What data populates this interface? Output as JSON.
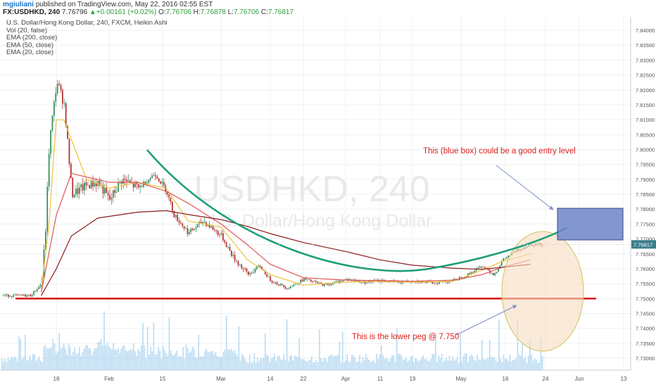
{
  "header": {
    "author": "mgiuliani",
    "published": "published on TradingView.com, May 22, 2016 02:55 EST",
    "symbol": "FX:USDHKD, 240",
    "last": "7.76796",
    "arrow": "▲",
    "change": "+0.00161 (+0.02%)",
    "o_label": "O:",
    "o_val": "7.76706",
    "h_label": "H:",
    "h_val": "7.76878",
    "l_label": "L:",
    "l_val": "7.76706",
    "c_label": "C:",
    "c_val": "7.76817"
  },
  "legend": {
    "title": "U.S. Dollar/Hong Kong Dollar, 240, FXCM, Heikin Ashi",
    "vol": "Vol (20, false)",
    "ema200": "EMA (200, close)",
    "ema50": "EMA (50, close)",
    "ema20": "EMA (20, close)"
  },
  "watermark": {
    "big": "USDHKD, 240",
    "small": "U.S. Dollar/Hong Kong Dollar"
  },
  "annotations": {
    "entry": "This (blue box) could be a good entry level",
    "peg": "This is the lower peg @ 7.750"
  },
  "last_price_label": "7.76817",
  "colors": {
    "candle_up": "#2f8a54",
    "candle_down": "#b02a2a",
    "ema20": "#e8c53a",
    "ema50": "#e05555",
    "ema200": "#8c1a1a",
    "volume": "#7fbde8",
    "curve": "#1e9e78",
    "peg_line": "#d9201c",
    "entry_box": "#6f84c8",
    "circle_fill": "#f9dcc0",
    "circle_stroke": "#cbc35c",
    "annotation_text": "#d9201c",
    "arrow": "#7a8fc8"
  },
  "chart_data": {
    "type": "line",
    "chart_style": "heikin-ashi candlestick",
    "symbol": "FX:USDHKD",
    "interval": "240",
    "ylim": [
      7.726,
      7.8445
    ],
    "y_ticks": [
      7.84,
      7.835,
      7.83,
      7.825,
      7.82,
      7.815,
      7.81,
      7.805,
      7.8,
      7.795,
      7.79,
      7.785,
      7.78,
      7.775,
      7.77,
      7.765,
      7.76,
      7.755,
      7.75,
      7.745,
      7.74,
      7.735,
      7.73
    ],
    "y_tick_labels": [
      "7.84000",
      "7.83500",
      "7.83000",
      "7.82500",
      "7.82000",
      "7.81500",
      "7.81000",
      "7.80500",
      "7.80000",
      "7.79500",
      "7.79000",
      "7.78500",
      "7.78000",
      "7.77500",
      "7.77000",
      "7.76500",
      "7.76000",
      "7.75500",
      "7.75000",
      "7.74500",
      "7.74000",
      "7.73500",
      "7.73000"
    ],
    "x_ticks": [
      "18",
      "Feb",
      "15",
      "Mar",
      "14",
      "22",
      "Apr",
      "11",
      "19",
      "May",
      "16",
      "24",
      "Jun",
      "13"
    ],
    "grid": true,
    "series": [
      {
        "name": "USDHKD",
        "x": [
          "Jan 11",
          "Jan 14",
          "Jan 15",
          "Jan 16",
          "Jan 18",
          "Jan 20",
          "Jan 22",
          "Jan 26",
          "Jan 29",
          "Feb 1",
          "Feb 4",
          "Feb 8",
          "Feb 12",
          "Feb 15",
          "Feb 17",
          "Feb 21",
          "Feb 25",
          "Mar 1",
          "Mar 4",
          "Mar 8",
          "Mar 11",
          "Mar 14",
          "Mar 18",
          "Mar 22",
          "Mar 27",
          "Apr 1",
          "Apr 6",
          "Apr 11",
          "Apr 16",
          "Apr 19",
          "Apr 24",
          "Apr 29",
          "May 3",
          "May 8",
          "May 12",
          "May 15",
          "May 18",
          "May 20",
          "May 21"
        ],
        "y": [
          7.751,
          7.755,
          7.773,
          7.802,
          7.823,
          7.815,
          7.785,
          7.788,
          7.789,
          7.783,
          7.79,
          7.787,
          7.792,
          7.786,
          7.778,
          7.772,
          7.776,
          7.771,
          7.764,
          7.758,
          7.761,
          7.756,
          7.7535,
          7.7565,
          7.7545,
          7.7565,
          7.7555,
          7.756,
          7.7555,
          7.756,
          7.7552,
          7.756,
          7.758,
          7.761,
          7.758,
          7.763,
          7.766,
          7.7675,
          7.76817
        ]
      },
      {
        "name": "EMA (20, close)",
        "x": [
          "Jan 14",
          "Jan 16",
          "Jan 18",
          "Jan 20",
          "Jan 26",
          "Feb 1",
          "Feb 8",
          "Feb 15",
          "Feb 21",
          "Mar 1",
          "Mar 8",
          "Mar 14",
          "Mar 22",
          "Apr 1",
          "Apr 11",
          "Apr 19",
          "Apr 29",
          "May 8",
          "May 15",
          "May 21"
        ],
        "y": [
          7.753,
          7.774,
          7.81,
          7.81,
          7.79,
          7.787,
          7.789,
          7.787,
          7.776,
          7.774,
          7.763,
          7.758,
          7.7545,
          7.7555,
          7.7558,
          7.7555,
          7.7558,
          7.7595,
          7.7625,
          7.765
        ]
      },
      {
        "name": "EMA (50, close)",
        "x": [
          "Jan 14",
          "Jan 18",
          "Jan 22",
          "Feb 1",
          "Feb 8",
          "Feb 15",
          "Feb 21",
          "Mar 1",
          "Mar 8",
          "Mar 14",
          "Mar 22",
          "Apr 1",
          "Apr 11",
          "Apr 19",
          "Apr 29",
          "May 8",
          "May 15",
          "May 21"
        ],
        "y": [
          7.752,
          7.778,
          7.792,
          7.789,
          7.789,
          7.786,
          7.782,
          7.775,
          7.768,
          7.7615,
          7.757,
          7.7562,
          7.756,
          7.7558,
          7.7562,
          7.758,
          7.7605,
          7.763
        ]
      },
      {
        "name": "EMA (200, close)",
        "x": [
          "Jan 14",
          "Jan 18",
          "Jan 22",
          "Jan 29",
          "Feb 8",
          "Feb 15",
          "Feb 21",
          "Mar 1",
          "Mar 8",
          "Mar 14",
          "Mar 22",
          "Apr 1",
          "Apr 11",
          "Apr 19",
          "Apr 29",
          "May 8",
          "May 15",
          "May 21"
        ],
        "y": [
          7.751,
          7.76,
          7.771,
          7.777,
          7.779,
          7.7795,
          7.7782,
          7.7765,
          7.7742,
          7.7718,
          7.7688,
          7.7658,
          7.763,
          7.7612,
          7.7602,
          7.7598,
          7.7605,
          7.7615
        ]
      }
    ],
    "lines": {
      "peg": 7.75
    }
  }
}
